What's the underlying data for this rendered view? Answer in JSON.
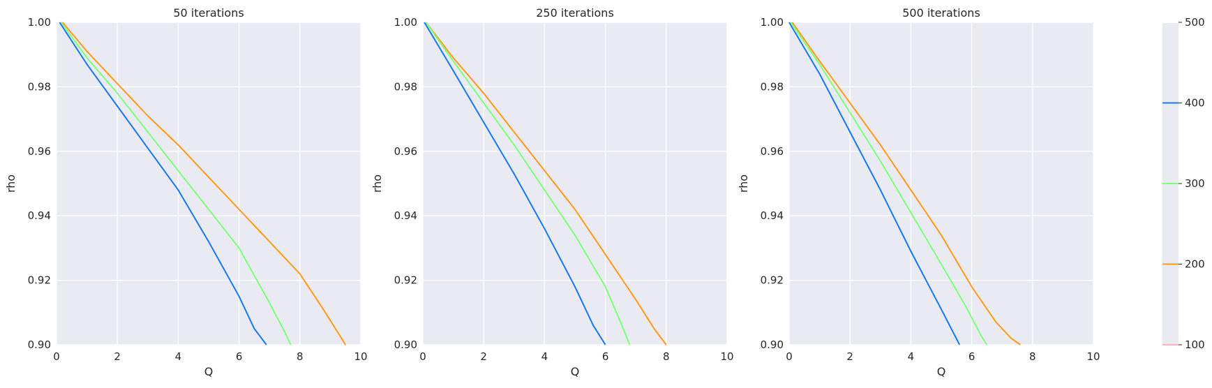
{
  "chart_data": [
    {
      "type": "line",
      "title": "50 iterations",
      "xlabel": "Q",
      "ylabel": "rho",
      "xlim": [
        0,
        10
      ],
      "ylim": [
        0.9,
        1.0
      ],
      "xticks": [
        "0",
        "2",
        "4",
        "6",
        "8",
        "10"
      ],
      "yticks": [
        "0.90",
        "0.92",
        "0.94",
        "0.96",
        "0.98",
        "1.00"
      ],
      "grid": true,
      "series": [
        {
          "name": "200",
          "color": "#ff9a14",
          "x": [
            0.2,
            1.0,
            2.0,
            3.0,
            4.0,
            5.0,
            6.0,
            7.0,
            8.0,
            8.7,
            9.3,
            9.5
          ],
          "y": [
            1.0,
            0.991,
            0.981,
            0.971,
            0.962,
            0.952,
            0.942,
            0.932,
            0.922,
            0.912,
            0.903,
            0.9
          ]
        },
        {
          "name": "300",
          "color": "#7dff7a",
          "x": [
            0.15,
            1.0,
            2.0,
            3.0,
            4.0,
            5.0,
            6.0,
            7.0,
            7.5,
            7.7
          ],
          "y": [
            1.0,
            0.989,
            0.978,
            0.966,
            0.954,
            0.942,
            0.93,
            0.913,
            0.904,
            0.9
          ]
        },
        {
          "name": "400",
          "color": "#1478f0",
          "x": [
            0.1,
            1.0,
            2.0,
            3.0,
            4.0,
            5.0,
            6.0,
            6.5,
            6.9
          ],
          "y": [
            1.0,
            0.987,
            0.974,
            0.961,
            0.948,
            0.932,
            0.915,
            0.905,
            0.9
          ]
        }
      ]
    },
    {
      "type": "line",
      "title": "250 iterations",
      "xlabel": "Q",
      "ylabel": "rho",
      "xlim": [
        0,
        10
      ],
      "ylim": [
        0.9,
        1.0
      ],
      "xticks": [
        "0",
        "2",
        "4",
        "6",
        "8",
        "10"
      ],
      "yticks": [
        "0.90",
        "0.92",
        "0.94",
        "0.96",
        "0.98",
        "1.00"
      ],
      "grid": true,
      "series": [
        {
          "name": "200",
          "color": "#ff9a14",
          "x": [
            0.1,
            1.0,
            2.0,
            3.0,
            4.0,
            5.0,
            6.0,
            7.0,
            7.6,
            8.0
          ],
          "y": [
            1.0,
            0.989,
            0.978,
            0.966,
            0.954,
            0.942,
            0.928,
            0.914,
            0.905,
            0.9
          ]
        },
        {
          "name": "300",
          "color": "#7dff7a",
          "x": [
            0.1,
            1.0,
            2.0,
            3.0,
            4.0,
            5.0,
            6.0,
            6.5,
            6.8
          ],
          "y": [
            1.0,
            0.988,
            0.975,
            0.962,
            0.948,
            0.934,
            0.918,
            0.907,
            0.9
          ]
        },
        {
          "name": "400",
          "color": "#1478f0",
          "x": [
            0.05,
            1.0,
            2.0,
            3.0,
            4.0,
            5.0,
            5.6,
            6.0
          ],
          "y": [
            1.0,
            0.985,
            0.969,
            0.953,
            0.936,
            0.918,
            0.906,
            0.9
          ]
        }
      ]
    },
    {
      "type": "line",
      "title": "500 iterations",
      "xlabel": "Q",
      "ylabel": "rho",
      "xlim": [
        0,
        10
      ],
      "ylim": [
        0.9,
        1.0
      ],
      "xticks": [
        "0",
        "2",
        "4",
        "6",
        "8",
        "10"
      ],
      "yticks": [
        "0.90",
        "0.92",
        "0.94",
        "0.96",
        "0.98",
        "1.00"
      ],
      "grid": true,
      "series": [
        {
          "name": "200",
          "color": "#ff9a14",
          "x": [
            0.1,
            1.0,
            2.0,
            3.0,
            4.0,
            5.0,
            6.0,
            6.8,
            7.3,
            7.6
          ],
          "y": [
            1.0,
            0.988,
            0.975,
            0.962,
            0.948,
            0.934,
            0.918,
            0.907,
            0.902,
            0.9
          ]
        },
        {
          "name": "300",
          "color": "#7dff7a",
          "x": [
            0.05,
            1.0,
            2.0,
            3.0,
            4.0,
            5.0,
            5.8,
            6.3,
            6.5
          ],
          "y": [
            1.0,
            0.987,
            0.972,
            0.957,
            0.941,
            0.925,
            0.912,
            0.903,
            0.9
          ]
        },
        {
          "name": "400",
          "color": "#1478f0",
          "x": [
            0.0,
            1.0,
            2.0,
            3.0,
            4.0,
            5.0,
            5.6
          ],
          "y": [
            1.0,
            0.984,
            0.966,
            0.948,
            0.929,
            0.911,
            0.9
          ]
        }
      ]
    }
  ],
  "colorbar": {
    "ticks": [
      "500",
      "400",
      "300",
      "200",
      "100"
    ],
    "values": [
      500,
      400,
      300,
      200,
      100
    ],
    "colors": [
      "#ffffff",
      "#1478f0",
      "#7dff7a",
      "#ff9a14",
      "#ffb3c1"
    ],
    "range": [
      100,
      500
    ]
  },
  "style": {
    "axes_facecolor": "#eaeaf2",
    "grid_color": "#ffffff",
    "text_color": "#262626"
  }
}
